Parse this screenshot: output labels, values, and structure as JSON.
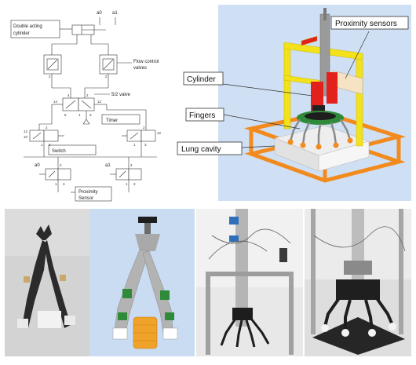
{
  "pneumatic": {
    "double_acting_cylinder_line1": "Double acting",
    "double_acting_cylinder_line2": "cylinder",
    "a0": "a0",
    "a1": "a1",
    "flow_control_line1": "Flow control",
    "flow_control_line2": "valves",
    "valve_5_2": "5/2 valve",
    "timer": "Timer",
    "switch": "Switch",
    "proximity_line1": "Proximity",
    "proximity_line2": "Sensor",
    "port_14": "14",
    "port_12": "12",
    "port_4": "4",
    "port_2": "2",
    "port_5": "5",
    "port_1": "1",
    "port_3": "3",
    "port_12_left": "12",
    "port_12_right": "12",
    "port_10": "10",
    "port_2_left": "2",
    "port_2_right": "2",
    "port_1_left": "1",
    "port_1_right": "1",
    "port_3_left": "3",
    "port_3_right": "3",
    "small_2_top_left": "2",
    "small_2_top_right": "2",
    "small_1_a0": "1",
    "small_3_a0": "3",
    "small_1_a1": "1",
    "small_3_a1": "3",
    "small_2_a0": "2",
    "small_2_a1": "2"
  },
  "cad": {
    "proximity_sensors": "Proximity sensors",
    "cylinder": "Cylinder",
    "fingers": "Fingers",
    "lung_cavity": "Lung cavity"
  },
  "colors": {
    "cad_background": "#cfe0f4",
    "frame_yellow": "#f3e21a",
    "frame_orange": "#f28a1e",
    "cylinder_red": "#e3211c",
    "finger_green": "#2f8a3a",
    "render_blue": "#c9dcf2"
  }
}
